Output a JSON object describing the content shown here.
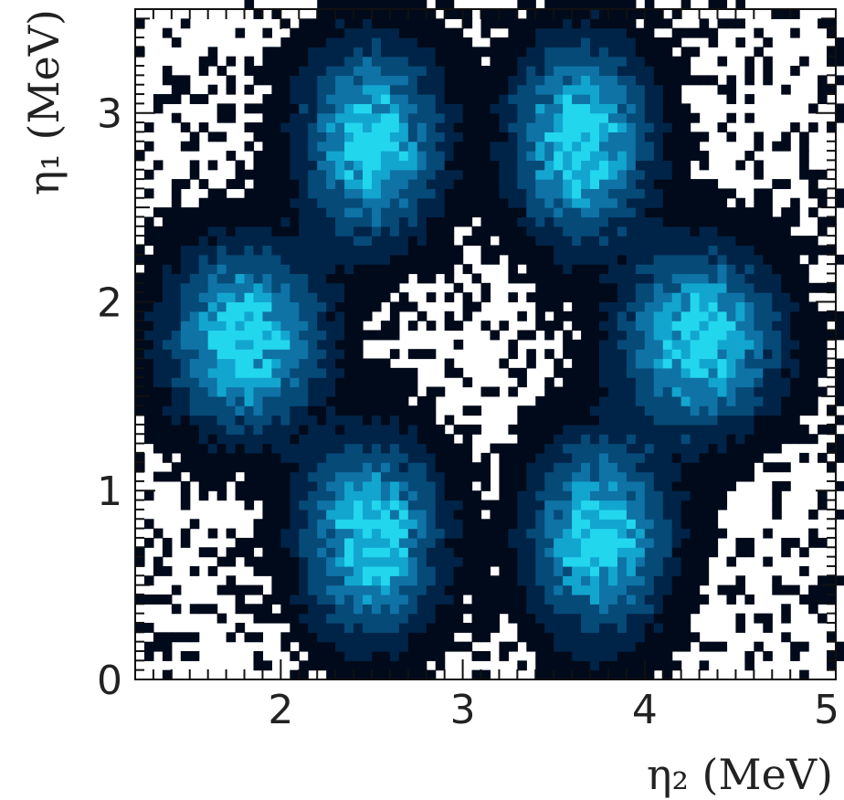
{
  "chart_data": {
    "type": "heatmap",
    "title": "",
    "xlabel": "η₂ (MeV)",
    "ylabel": "η₁ (MeV)",
    "xlim": [
      1.2,
      5.05
    ],
    "ylim": [
      0,
      3.55
    ],
    "xticks": [
      "2",
      "3",
      "4",
      "5"
    ],
    "yticks": [
      "0",
      "1",
      "2",
      "3"
    ],
    "grid": false,
    "colormap": [
      "#ffffff",
      "#000a1a",
      "#002448",
      "#064a78",
      "#0f73a6",
      "#12a6cf",
      "#22d6ee"
    ],
    "clusters": [
      {
        "x": 2.5,
        "y": 2.85,
        "sigma_x": 0.22,
        "sigma_y": 0.3,
        "peak": 1.0
      },
      {
        "x": 3.65,
        "y": 2.85,
        "sigma_x": 0.22,
        "sigma_y": 0.3,
        "peak": 1.0
      },
      {
        "x": 1.8,
        "y": 1.8,
        "sigma_x": 0.25,
        "sigma_y": 0.28,
        "peak": 1.0
      },
      {
        "x": 4.3,
        "y": 1.8,
        "sigma_x": 0.25,
        "sigma_y": 0.28,
        "peak": 1.0
      },
      {
        "x": 2.5,
        "y": 0.75,
        "sigma_x": 0.22,
        "sigma_y": 0.3,
        "peak": 1.0
      },
      {
        "x": 3.75,
        "y": 0.75,
        "sigma_x": 0.22,
        "sigma_y": 0.3,
        "peak": 1.0
      }
    ]
  }
}
